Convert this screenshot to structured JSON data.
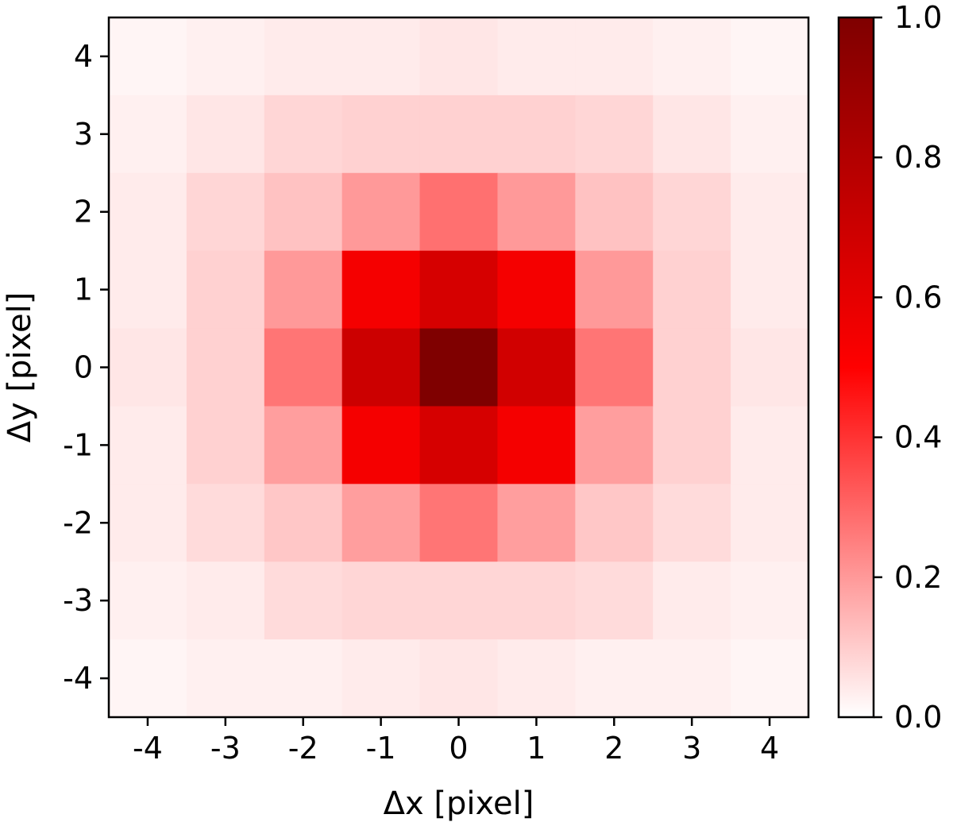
{
  "chart_data": {
    "type": "heatmap",
    "title": "",
    "xlabel": "Δx [pixel]",
    "ylabel": "Δy [pixel]",
    "x": [
      -4,
      -3,
      -2,
      -1,
      0,
      1,
      2,
      3,
      4
    ],
    "y": [
      4,
      3,
      2,
      1,
      0,
      -1,
      -2,
      -3,
      -4
    ],
    "x_tick_labels": [
      "-4",
      "-3",
      "-2",
      "-1",
      "0",
      "1",
      "2",
      "3",
      "4"
    ],
    "y_tick_labels": [
      "4",
      "3",
      "2",
      "1",
      "0",
      "-1",
      "-2",
      "-3",
      "-4"
    ],
    "xlim": [
      -4.5,
      4.5
    ],
    "ylim": [
      -4.5,
      4.5
    ],
    "values": [
      [
        0.02,
        0.03,
        0.04,
        0.04,
        0.05,
        0.04,
        0.04,
        0.03,
        0.02
      ],
      [
        0.03,
        0.05,
        0.08,
        0.09,
        0.09,
        0.09,
        0.08,
        0.05,
        0.03
      ],
      [
        0.04,
        0.08,
        0.12,
        0.2,
        0.28,
        0.2,
        0.12,
        0.08,
        0.04
      ],
      [
        0.04,
        0.09,
        0.2,
        0.54,
        0.66,
        0.54,
        0.2,
        0.09,
        0.04
      ],
      [
        0.05,
        0.09,
        0.27,
        0.7,
        1.0,
        0.68,
        0.27,
        0.09,
        0.05
      ],
      [
        0.04,
        0.09,
        0.19,
        0.54,
        0.66,
        0.54,
        0.19,
        0.09,
        0.04
      ],
      [
        0.04,
        0.07,
        0.11,
        0.19,
        0.27,
        0.19,
        0.11,
        0.07,
        0.04
      ],
      [
        0.03,
        0.04,
        0.07,
        0.08,
        0.08,
        0.08,
        0.07,
        0.04,
        0.03
      ],
      [
        0.02,
        0.03,
        0.03,
        0.04,
        0.05,
        0.04,
        0.03,
        0.03,
        0.02
      ]
    ],
    "colorbar": {
      "range": [
        0.0,
        1.0
      ],
      "ticks": [
        0.0,
        0.2,
        0.4,
        0.6,
        0.8,
        1.0
      ],
      "tick_labels": [
        "0.0",
        "0.2",
        "0.4",
        "0.6",
        "0.8",
        "1.0"
      ],
      "colormap": [
        "#ffffff",
        "#ff0000",
        "#7f0000"
      ]
    },
    "grid": false
  }
}
